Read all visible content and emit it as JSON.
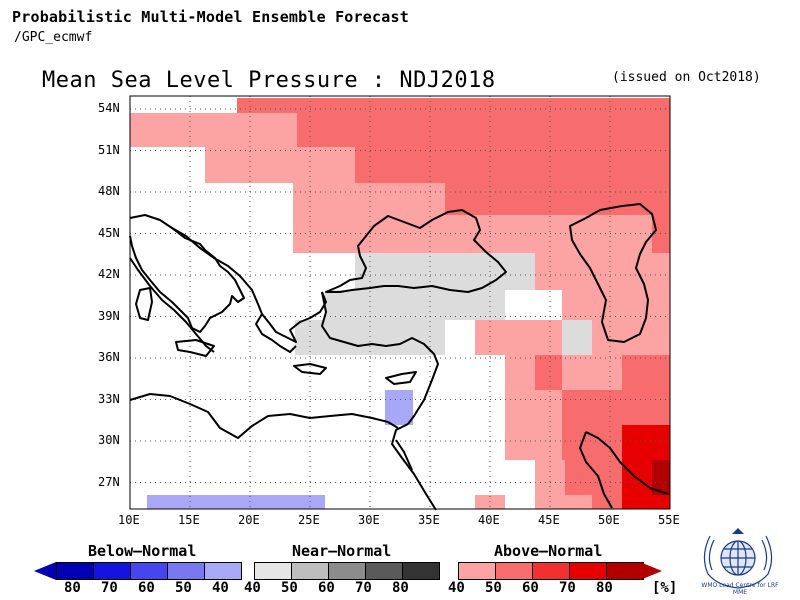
{
  "header": {
    "line1": "Probabilistic Multi-Model Ensemble Forecast",
    "line2": "/GPC_ecmwf"
  },
  "title": "Mean Sea Level Pressure : NDJ2018",
  "issued": "(issued on Oct2018)",
  "axes": {
    "lat_labels": [
      "54N",
      "51N",
      "48N",
      "45N",
      "42N",
      "39N",
      "36N",
      "33N",
      "30N",
      "27N"
    ],
    "lon_labels": [
      "10E",
      "15E",
      "20E",
      "25E",
      "30E",
      "35E",
      "40E",
      "45E",
      "50E",
      "55E"
    ]
  },
  "colors": {
    "above_40": "#fca3a3",
    "above_50": "#f76c6c",
    "above_60": "#f23030",
    "above_70": "#e60000",
    "above_80": "#b20000",
    "near_40": "#dcdcdc",
    "below_40": "#a8a8f7",
    "grid": "#555555",
    "coast": "#000000"
  },
  "legend": {
    "below": {
      "label": "Below–Normal",
      "ticks": [
        "80",
        "70",
        "60",
        "50",
        "40"
      ],
      "colors": [
        "#0000b4",
        "#1414dc",
        "#4646f0",
        "#7878f0",
        "#a8a8f7"
      ]
    },
    "near": {
      "label": "Near–Normal",
      "ticks": [
        "40",
        "50",
        "60",
        "70",
        "80"
      ],
      "colors": [
        "#e6e6e6",
        "#bebebe",
        "#8c8c8c",
        "#5a5a5a",
        "#333333"
      ]
    },
    "above": {
      "label": "Above–Normal",
      "ticks": [
        "40",
        "50",
        "60",
        "70",
        "80"
      ],
      "unit": "[%]",
      "colors": [
        "#fca3a3",
        "#f76c6c",
        "#f23030",
        "#e60000",
        "#b20000"
      ]
    }
  },
  "logo": {
    "name": "wmo-logo",
    "caption": "WMO Lead Centre for LRF MME"
  }
}
